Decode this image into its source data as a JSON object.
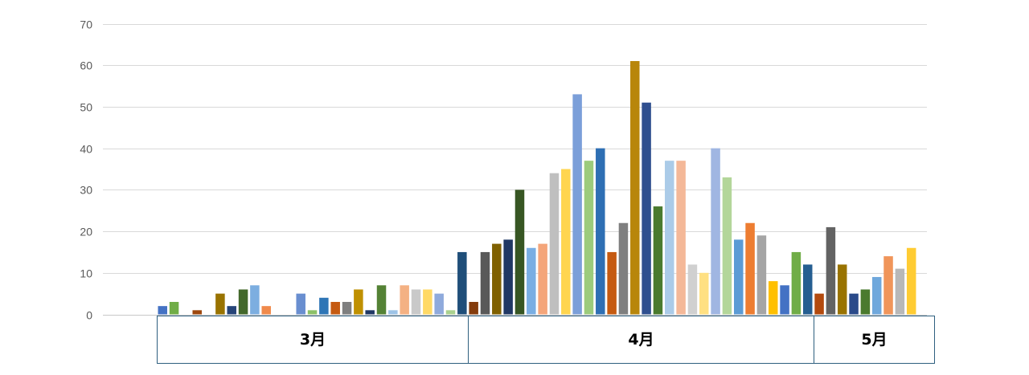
{
  "chart_data": {
    "type": "bar",
    "ylim": [
      0,
      70
    ],
    "yticks": [
      "0",
      "10",
      "20",
      "30",
      "40",
      "50",
      "60",
      "70"
    ],
    "grid": true,
    "legend": "none",
    "groups": [
      {
        "label": "3月",
        "start": 0,
        "count": 27
      },
      {
        "label": "4月",
        "start": 27,
        "count": 30
      },
      {
        "label": "5月",
        "start": 57,
        "count": 9
      }
    ],
    "values": [
      2,
      3,
      0,
      1,
      0,
      5,
      2,
      6,
      7,
      2,
      0,
      0,
      5,
      1,
      4,
      3,
      3,
      6,
      1,
      7,
      1,
      7,
      6,
      6,
      5,
      1,
      15,
      3,
      15,
      17,
      18,
      30,
      16,
      17,
      34,
      35,
      53,
      37,
      40,
      15,
      22,
      61,
      51,
      26,
      37,
      37,
      12,
      10,
      40,
      33,
      18,
      22,
      19,
      8,
      7,
      15,
      12,
      5,
      21,
      12,
      5,
      6,
      9,
      14,
      11,
      16
    ],
    "colors": [
      "#4472c4",
      "#70ad47",
      "#5b9bd5",
      "#9e480e",
      "#ed7d31",
      "#997300",
      "#264478",
      "#43682b",
      "#7caee0",
      "#f08a4b",
      "#a5a5a5",
      "#ffc000",
      "#698ed0",
      "#8cc168",
      "#2e75b6",
      "#c55a11",
      "#7f7f7f",
      "#bf9000",
      "#1f3864",
      "#548235",
      "#9dc3e6",
      "#f4b183",
      "#c9c9c9",
      "#ffd966",
      "#8faadc",
      "#a9d18e",
      "#1f4e79",
      "#843c0c",
      "#595959",
      "#7f6000",
      "#203864",
      "#375623",
      "#79aee3",
      "#f4a57a",
      "#bfbfbf",
      "#ffd54f",
      "#7b9fd9",
      "#9ccb7c",
      "#2e6fb4",
      "#c55a11",
      "#7f7f7f",
      "#b8860b",
      "#2f4f8f",
      "#4a7a2e",
      "#abcbe8",
      "#f4b898",
      "#d0d0d0",
      "#ffe082",
      "#a0b6e2",
      "#b3d69a",
      "#5b9bd5",
      "#ed7d31",
      "#a5a5a5",
      "#ffc000",
      "#4472c4",
      "#70ad47",
      "#255e91",
      "#b34a0e",
      "#636363",
      "#997300",
      "#2a4a8a",
      "#4a7a2e",
      "#6fa8dc",
      "#f0955a",
      "#b8b8b8",
      "#ffcc33"
    ]
  }
}
